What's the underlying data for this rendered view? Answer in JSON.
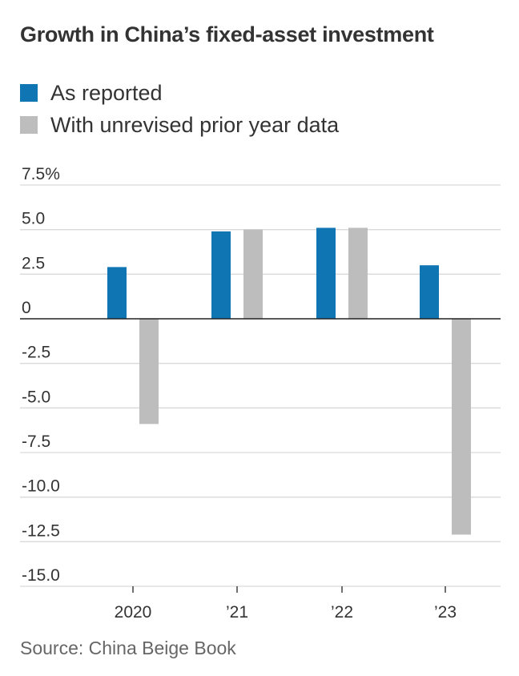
{
  "colors": {
    "reported": "#0f76b3",
    "unrevised": "#bdbdbd",
    "grid": "#d9d9d9",
    "axis": "#222222"
  },
  "chart_data": {
    "type": "bar",
    "title": "Growth in China’s fixed-asset investment",
    "categories": [
      "2020",
      "’21",
      "’22",
      "’23"
    ],
    "series": [
      {
        "name": "As reported",
        "values": [
          2.9,
          4.9,
          5.1,
          3.0
        ]
      },
      {
        "name": "With unrevised prior year data",
        "values": [
          -5.9,
          5.0,
          5.1,
          -12.1
        ]
      }
    ],
    "ylim": [
      -15,
      7.5
    ],
    "yticks": [
      7.5,
      5.0,
      2.5,
      0,
      -2.5,
      -5.0,
      -7.5,
      -10.0,
      -12.5,
      -15.0
    ],
    "ytick_labels": [
      "7.5%",
      "5.0",
      "2.5",
      "0",
      "-2.5",
      "-5.0",
      "-7.5",
      "-10.0",
      "-12.5",
      "-15.0"
    ],
    "grid": true,
    "legend": "top-left",
    "source": "Source: China Beige Book"
  }
}
